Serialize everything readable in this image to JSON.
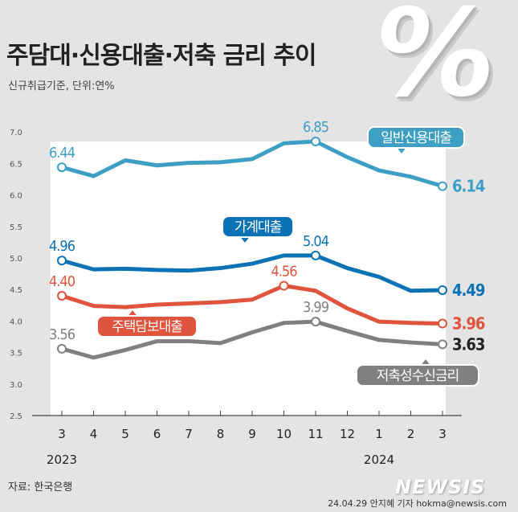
{
  "title": "주담대·신용대출·저축 금리 추이",
  "subtitle": "신규취급기준, 단위:연%",
  "decoration": "%",
  "source": "자료: 한국은행",
  "credit": "24.04.29 안지혜 기자 hokma@newsis.com",
  "watermark": "NEWSIS",
  "chart_data": {
    "type": "line",
    "categories": [
      "3",
      "4",
      "5",
      "6",
      "7",
      "8",
      "9",
      "10",
      "11",
      "12",
      "1",
      "2",
      "3"
    ],
    "year_labels": [
      {
        "index": 0,
        "label": "2023"
      },
      {
        "index": 10,
        "label": "2024"
      }
    ],
    "ylim": [
      2.5,
      7.0
    ],
    "yticks": [
      "2.5",
      "3.0",
      "3.5",
      "4.0",
      "4.5",
      "5.0",
      "5.5",
      "6.0",
      "6.5",
      "7.0"
    ],
    "series": [
      {
        "name": "일반신용대출",
        "color": "#3e9fc4",
        "values": [
          6.44,
          6.3,
          6.55,
          6.47,
          6.51,
          6.52,
          6.57,
          6.82,
          6.85,
          6.6,
          6.39,
          6.29,
          6.14
        ],
        "labels": [
          {
            "index": 0,
            "text": "6.44",
            "pos": "above"
          },
          {
            "index": 8,
            "text": "6.85",
            "pos": "above"
          },
          {
            "index": 12,
            "text": "6.14",
            "pos": "right"
          }
        ]
      },
      {
        "name": "가계대출",
        "color": "#0b72b5",
        "values": [
          4.96,
          4.82,
          4.83,
          4.81,
          4.8,
          4.84,
          4.91,
          5.04,
          5.04,
          4.84,
          4.7,
          4.48,
          4.49
        ],
        "labels": [
          {
            "index": 0,
            "text": "4.96",
            "pos": "above"
          },
          {
            "index": 8,
            "text": "5.04",
            "pos": "above"
          },
          {
            "index": 12,
            "text": "4.49",
            "pos": "right"
          }
        ]
      },
      {
        "name": "주택담보대출",
        "color": "#e0533c",
        "values": [
          4.4,
          4.24,
          4.22,
          4.26,
          4.28,
          4.3,
          4.34,
          4.56,
          4.48,
          4.2,
          3.99,
          3.97,
          3.96
        ],
        "labels": [
          {
            "index": 0,
            "text": "4.40",
            "pos": "above"
          },
          {
            "index": 7,
            "text": "4.56",
            "pos": "above"
          },
          {
            "index": 12,
            "text": "3.96",
            "pos": "right"
          }
        ]
      },
      {
        "name": "저축성수신금리",
        "color": "#808080",
        "values": [
          3.56,
          3.42,
          3.54,
          3.68,
          3.68,
          3.65,
          3.82,
          3.97,
          3.99,
          3.84,
          3.7,
          3.66,
          3.63
        ],
        "labels": [
          {
            "index": 0,
            "text": "3.56",
            "pos": "above"
          },
          {
            "index": 8,
            "text": "3.99",
            "pos": "above"
          },
          {
            "index": 12,
            "text": "3.63",
            "pos": "right"
          }
        ]
      }
    ]
  }
}
